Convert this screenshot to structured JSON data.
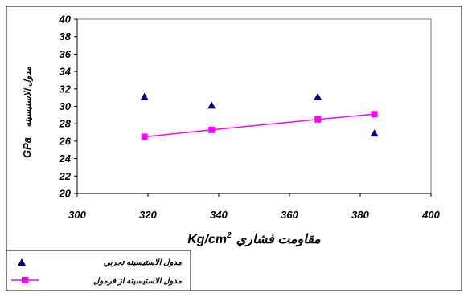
{
  "chart_data": {
    "type": "scatter",
    "xlabel": "Kg/cm",
    "xlabel_sup": "2",
    "xlabel_prefix": "مقاومت فشاري",
    "ylabel_unit": "GPa",
    "ylabel": "مدول الاستيسيته",
    "xlim": [
      300,
      400
    ],
    "ylim": [
      20,
      40
    ],
    "xticks": [
      300,
      320,
      340,
      360,
      380,
      400
    ],
    "yticks": [
      20,
      22,
      24,
      26,
      28,
      30,
      32,
      34,
      36,
      38,
      40
    ],
    "grid": false,
    "legend_position": "bottom-left",
    "series": [
      {
        "name": "مدول الاستيسيته تجربي",
        "style": "markers",
        "marker": "triangle",
        "color": "#00007f",
        "points": [
          {
            "x": 319,
            "y": 31.1
          },
          {
            "x": 338,
            "y": 30.1
          },
          {
            "x": 368,
            "y": 31.1
          },
          {
            "x": 384,
            "y": 26.9
          }
        ]
      },
      {
        "name": "مدول الاستيسيته از فرمول",
        "style": "line-markers",
        "marker": "square",
        "color": "#ff00ff",
        "points": [
          {
            "x": 319,
            "y": 26.5
          },
          {
            "x": 338,
            "y": 27.3
          },
          {
            "x": 368,
            "y": 28.5
          },
          {
            "x": 384,
            "y": 29.1
          }
        ]
      }
    ]
  }
}
